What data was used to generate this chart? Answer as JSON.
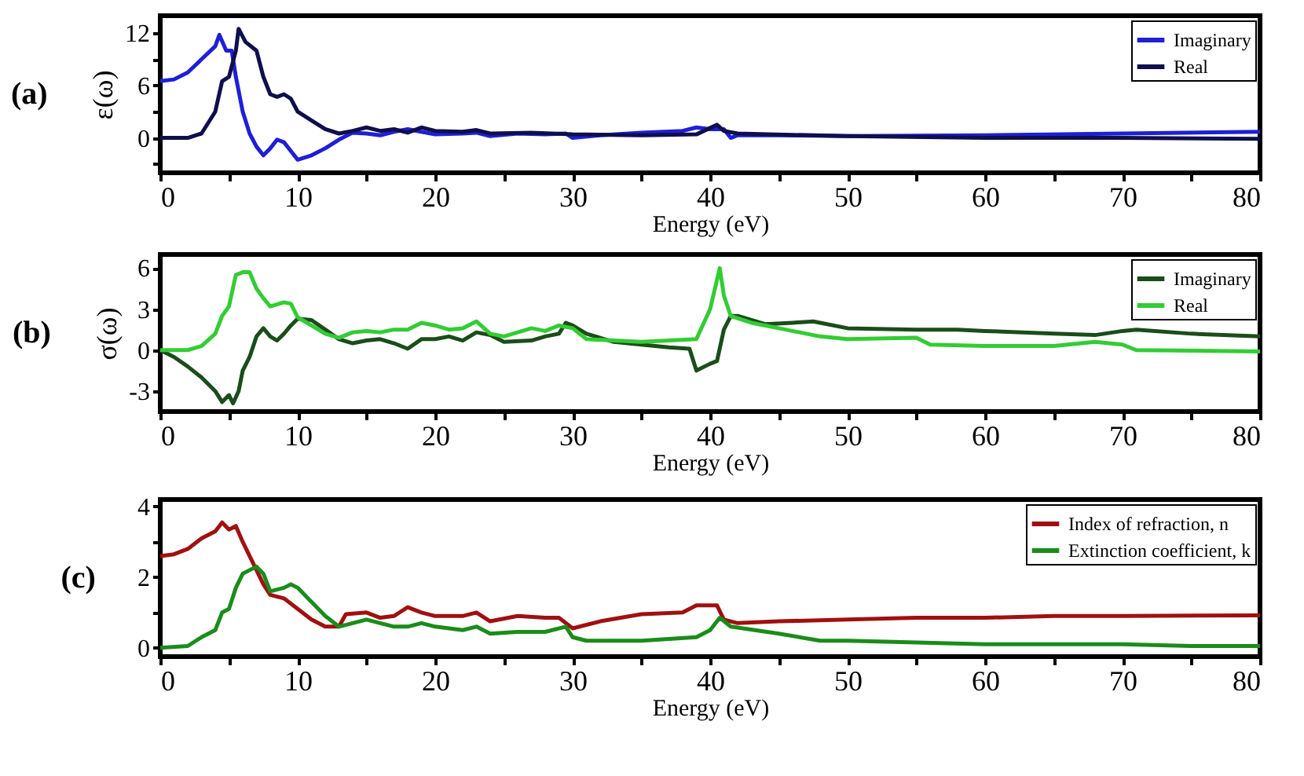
{
  "chart_data": [
    {
      "type": "line",
      "title": "(a)",
      "xlabel": "Energy (eV)",
      "ylabel": "ε(ω)",
      "xlim": [
        0,
        80
      ],
      "xticks": [
        0,
        {
          "value": 5,
          "label": null
        },
        10,
        {
          "value": 15,
          "label": null
        },
        20,
        {
          "value": 25,
          "label": null
        },
        30,
        {
          "value": 35,
          "label": null
        },
        40,
        {
          "value": 45,
          "label": null
        },
        50,
        {
          "value": 55,
          "label": null
        },
        60,
        {
          "value": 65,
          "label": null
        },
        70,
        {
          "value": 75,
          "label": null
        },
        80
      ],
      "ylim": [
        -4,
        14
      ],
      "yticks": [
        {
          "value": -3,
          "label": null
        },
        0,
        {
          "value": 3,
          "label": null
        },
        6,
        {
          "value": 9,
          "label": null
        },
        12
      ],
      "legend": "top right",
      "series": [
        {
          "name": "Imaginary",
          "color": "#1f1fd6",
          "x": [
            0,
            1,
            2,
            3,
            4,
            4.3,
            4.8,
            5.2,
            5.5,
            6,
            6.5,
            7,
            7.5,
            8,
            8.5,
            9,
            9.5,
            10,
            11,
            12,
            13,
            14,
            15,
            16,
            17,
            18,
            19,
            20,
            22,
            23,
            24,
            26,
            28,
            29.5,
            30,
            32,
            35,
            38,
            39,
            40,
            41,
            41.5,
            42,
            45,
            50,
            60,
            70,
            80
          ],
          "values": [
            6.5,
            6.7,
            7.5,
            9,
            10.5,
            11.8,
            10,
            10,
            7,
            3,
            0.5,
            -1,
            -2,
            -1.2,
            -0.2,
            -0.5,
            -1.5,
            -2.5,
            -2,
            -1.2,
            -0.2,
            0.6,
            0.5,
            0.3,
            0.7,
            1,
            0.7,
            0.4,
            0.5,
            0.6,
            0.2,
            0.5,
            0.4,
            0.5,
            0,
            0.3,
            0.6,
            0.8,
            1.2,
            1,
            1,
            0,
            0.3,
            0.3,
            0.2,
            0.3,
            0.5,
            0.7
          ]
        },
        {
          "name": "Real",
          "color": "#0f0f4d",
          "x": [
            0,
            2,
            3,
            4,
            4.5,
            5,
            5.5,
            5.7,
            6.2,
            7,
            7.5,
            8,
            8.5,
            9,
            9.5,
            10,
            11,
            12,
            13,
            14,
            15,
            16,
            17,
            18,
            19,
            20,
            22,
            23,
            24,
            27,
            30,
            35,
            39,
            40.5,
            41,
            42,
            50,
            60,
            70,
            80
          ],
          "values": [
            0,
            0,
            0.5,
            3,
            6.5,
            7,
            10,
            12.5,
            11,
            10,
            7,
            5,
            4.7,
            5,
            4.5,
            3,
            2,
            1,
            0.5,
            0.8,
            1.2,
            0.8,
            1,
            0.6,
            1.2,
            0.8,
            0.7,
            0.9,
            0.5,
            0.6,
            0.4,
            0.3,
            0.4,
            1.5,
            0.8,
            0.5,
            0.2,
            0,
            0,
            -0.1
          ]
        }
      ]
    },
    {
      "type": "line",
      "title": "(b)",
      "xlabel": "Energy (eV)",
      "ylabel": "σ(ω)",
      "xlim": [
        0,
        80
      ],
      "xticks": [
        0,
        {
          "value": 5,
          "label": null
        },
        10,
        {
          "value": 15,
          "label": null
        },
        20,
        {
          "value": 25,
          "label": null
        },
        30,
        {
          "value": 35,
          "label": null
        },
        40,
        {
          "value": 45,
          "label": null
        },
        50,
        {
          "value": 55,
          "label": null
        },
        60,
        {
          "value": 65,
          "label": null
        },
        70,
        {
          "value": 75,
          "label": null
        },
        80
      ],
      "ylim": [
        -4.5,
        7
      ],
      "yticks": [
        -3,
        0,
        3,
        6
      ],
      "legend": "top right",
      "series": [
        {
          "name": "Imaginary",
          "color": "#1a4d1a",
          "x": [
            0,
            1,
            2,
            3,
            4,
            4.5,
            5,
            5.3,
            5.7,
            6,
            6.5,
            7,
            7.5,
            8,
            8.5,
            9,
            9.5,
            10,
            11,
            12,
            13,
            14,
            15,
            16,
            17,
            18,
            19,
            20,
            21,
            22,
            23,
            24,
            25,
            27,
            28,
            29,
            29.5,
            30,
            31,
            33,
            35,
            37,
            38.5,
            39,
            40,
            40.5,
            41,
            41.5,
            42,
            44,
            46,
            47.5,
            50,
            55,
            58,
            60,
            65,
            68,
            70,
            71,
            75,
            80
          ],
          "values": [
            0,
            -0.5,
            -1.2,
            -2,
            -3,
            -3.8,
            -3.3,
            -3.9,
            -3,
            -1.5,
            -0.5,
            1,
            1.6,
            1,
            0.7,
            1.2,
            1.8,
            2.3,
            2.2,
            1.5,
            0.8,
            0.5,
            0.7,
            0.8,
            0.5,
            0.1,
            0.8,
            0.8,
            1,
            0.7,
            1.3,
            1.1,
            0.6,
            0.7,
            1,
            1.2,
            2,
            1.8,
            1.2,
            0.6,
            0.4,
            0.2,
            0.1,
            -1.5,
            -1,
            -0.8,
            1.5,
            2.5,
            2.5,
            1.9,
            2,
            2.1,
            1.6,
            1.5,
            1.5,
            1.4,
            1.2,
            1.1,
            1.4,
            1.5,
            1.2,
            1
          ]
        },
        {
          "name": "Real",
          "color": "#33cc33",
          "x": [
            0,
            2,
            3,
            4,
            4.5,
            5,
            5.5,
            6,
            6.5,
            7,
            7.5,
            8,
            9,
            9.5,
            10,
            11,
            12,
            13,
            14,
            15,
            16,
            17,
            18,
            19,
            20,
            21,
            22,
            23,
            24,
            25,
            26,
            27,
            28,
            29,
            30,
            31,
            35,
            37,
            39,
            40,
            40.7,
            41,
            41.5,
            43,
            45,
            48,
            50,
            55,
            56,
            60,
            65,
            68,
            70,
            71,
            80
          ],
          "values": [
            0,
            0,
            0.3,
            1.2,
            2.5,
            3.2,
            5.5,
            5.7,
            5.7,
            4.5,
            3.8,
            3.2,
            3.5,
            3.4,
            2.4,
            1.8,
            1.2,
            0.9,
            1.3,
            1.4,
            1.3,
            1.5,
            1.5,
            2,
            1.8,
            1.5,
            1.6,
            2.1,
            1.2,
            1,
            1.3,
            1.6,
            1.4,
            1.8,
            1.6,
            0.8,
            0.6,
            0.7,
            0.8,
            3,
            6,
            4,
            2.5,
            2,
            1.6,
            1,
            0.8,
            0.9,
            0.4,
            0.3,
            0.3,
            0.6,
            0.4,
            0,
            -0.1
          ]
        }
      ]
    },
    {
      "type": "line",
      "title": "(c)",
      "xlabel": "Energy (eV)",
      "xlim": [
        0,
        80
      ],
      "xticks": [
        0,
        {
          "value": 5,
          "label": null
        },
        10,
        {
          "value": 15,
          "label": null
        },
        20,
        {
          "value": 25,
          "label": null
        },
        30,
        {
          "value": 35,
          "label": null
        },
        40,
        {
          "value": 45,
          "label": null
        },
        50,
        {
          "value": 55,
          "label": null
        },
        60,
        {
          "value": 65,
          "label": null
        },
        70,
        {
          "value": 75,
          "label": null
        },
        80
      ],
      "ylim": [
        -0.25,
        4.2
      ],
      "yticks": [
        0,
        {
          "value": 1,
          "label": null
        },
        2,
        {
          "value": 3,
          "label": null
        },
        4
      ],
      "legend": "top right",
      "series": [
        {
          "name": "Index of refraction, n",
          "color": "#a01010",
          "x": [
            0,
            1,
            2,
            3,
            4,
            4.5,
            5,
            5.5,
            6,
            6.5,
            7,
            7.5,
            8,
            9,
            10,
            11,
            12,
            13,
            13.5,
            15,
            16,
            17,
            18,
            19,
            20,
            22,
            23,
            24,
            26,
            28,
            29,
            30,
            32,
            35,
            38,
            39,
            40.5,
            41,
            42,
            45,
            50,
            55,
            60,
            65,
            70,
            80
          ],
          "values": [
            2.6,
            2.65,
            2.8,
            3.1,
            3.3,
            3.55,
            3.35,
            3.45,
            3,
            2.6,
            2.2,
            1.8,
            1.5,
            1.4,
            1.1,
            0.8,
            0.6,
            0.6,
            0.95,
            1,
            0.85,
            0.9,
            1.15,
            1,
            0.9,
            0.9,
            1,
            0.75,
            0.9,
            0.85,
            0.85,
            0.55,
            0.75,
            0.95,
            1,
            1.2,
            1.2,
            0.8,
            0.7,
            0.75,
            0.8,
            0.85,
            0.85,
            0.9,
            0.9,
            0.92
          ]
        },
        {
          "name": "Extinction coefficient, k",
          "color": "#1a8c1a",
          "x": [
            0,
            2,
            3,
            4,
            4.5,
            5,
            5.5,
            6,
            6.5,
            7,
            7.5,
            8,
            9,
            9.5,
            10,
            11,
            12,
            13,
            14,
            15,
            16,
            17,
            18,
            19,
            20,
            22,
            23,
            24,
            26,
            28,
            29.5,
            30,
            31,
            35,
            39,
            40,
            40.7,
            41.5,
            45,
            48,
            50,
            55,
            60,
            70,
            75,
            80
          ],
          "values": [
            0,
            0.05,
            0.3,
            0.5,
            1,
            1.1,
            1.7,
            2.1,
            2.2,
            2.3,
            2.1,
            1.6,
            1.7,
            1.8,
            1.7,
            1.3,
            0.9,
            0.6,
            0.7,
            0.8,
            0.7,
            0.6,
            0.6,
            0.7,
            0.6,
            0.5,
            0.6,
            0.4,
            0.45,
            0.45,
            0.6,
            0.3,
            0.2,
            0.2,
            0.3,
            0.5,
            0.85,
            0.6,
            0.4,
            0.2,
            0.2,
            0.15,
            0.1,
            0.1,
            0.05,
            0.05
          ]
        }
      ]
    }
  ]
}
